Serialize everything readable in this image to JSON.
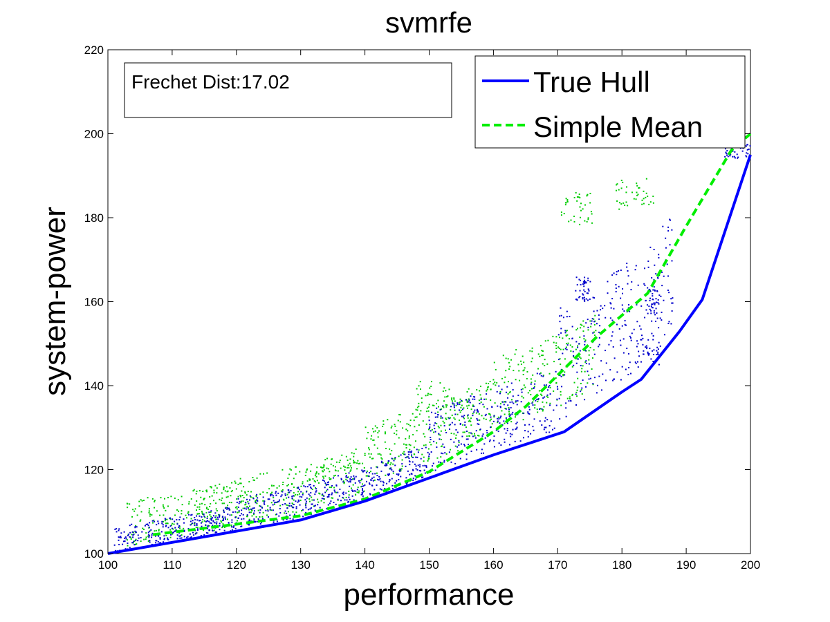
{
  "chart_data": {
    "type": "line",
    "title": "svmrfe",
    "xlabel": "performance",
    "ylabel": "system-power",
    "xlim": [
      100,
      200
    ],
    "ylim": [
      100,
      220
    ],
    "xticks": [
      "100",
      "110",
      "120",
      "130",
      "140",
      "150",
      "160",
      "170",
      "180",
      "190",
      "200"
    ],
    "yticks": [
      "100",
      "120",
      "140",
      "160",
      "180",
      "200",
      "220"
    ],
    "grid": false,
    "legend_position": "top-right",
    "annotation": "Frechet Dist:17.02",
    "series": [
      {
        "name": "True Hull",
        "color": "#0000ff",
        "style": "solid",
        "x": [
          100,
          130,
          140,
          150,
          160,
          171,
          180,
          183,
          189,
          192.5,
          200
        ],
        "y": [
          100,
          108,
          112.5,
          118,
          123.5,
          129,
          138.5,
          141.5,
          153,
          160.5,
          195
        ]
      },
      {
        "name": "Simple Mean",
        "color": "#00ee00",
        "style": "dashed",
        "x": [
          107,
          120,
          130,
          140,
          150,
          160,
          165,
          170,
          176,
          184,
          190,
          197,
          200
        ],
        "y": [
          104.5,
          107,
          109,
          113,
          119.5,
          129,
          135,
          142.5,
          151.5,
          162,
          178,
          196,
          200
        ]
      }
    ],
    "scatter": [
      {
        "color": "#00cc00",
        "description_ref": "green points",
        "bands": [
          {
            "x_start": 103,
            "x_end": 120,
            "y_low_offset": 1,
            "y_high_offset": 12
          },
          {
            "x_start": 120,
            "x_end": 140,
            "y_low_offset": 2,
            "y_high_offset": 13
          },
          {
            "x_start": 140,
            "x_end": 160,
            "y_low_offset": 4,
            "y_high_offset": 18
          },
          {
            "x_start": 160,
            "x_end": 176,
            "y_low_offset": 6,
            "y_high_offset": 24
          }
        ],
        "clusters": [
          {
            "x": 173,
            "y": 182,
            "spread_x": 2.5,
            "spread_y": 4
          },
          {
            "x": 182,
            "y": 186,
            "spread_x": 3,
            "spread_y": 4
          },
          {
            "x": 152,
            "y": 137,
            "spread_x": 4,
            "spread_y": 4
          }
        ]
      },
      {
        "color": "#0000cc",
        "description_ref": "blue points",
        "bands": [
          {
            "x_start": 101,
            "x_end": 120,
            "y_low_offset": 0,
            "y_high_offset": 6
          },
          {
            "x_start": 120,
            "x_end": 150,
            "y_low_offset": 0.5,
            "y_high_offset": 8
          },
          {
            "x_start": 150,
            "x_end": 170,
            "y_low_offset": 1,
            "y_high_offset": 16
          },
          {
            "x_start": 170,
            "x_end": 188,
            "y_low_offset": 3,
            "y_high_offset": 30
          }
        ],
        "clusters": [
          {
            "x": 174,
            "y": 163,
            "spread_x": 1.2,
            "spread_y": 3
          },
          {
            "x": 185,
            "y": 160,
            "spread_x": 1.5,
            "spread_y": 4
          },
          {
            "x": 184,
            "y": 148,
            "spread_x": 2,
            "spread_y": 3
          },
          {
            "x": 198,
            "y": 196,
            "spread_x": 2,
            "spread_y": 2
          }
        ]
      }
    ]
  }
}
